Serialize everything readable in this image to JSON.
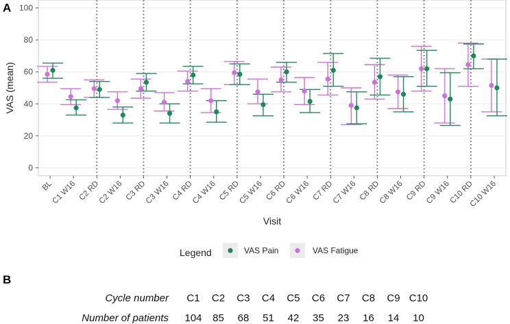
{
  "panel_a_label": "A",
  "panel_b_label": "B",
  "chart_data": {
    "type": "scatter",
    "subtype": "point-with-error-bars",
    "xlabel": "Visit",
    "ylabel": "VAS (mean)",
    "ylim": [
      -5,
      105
    ],
    "yticks": [
      0,
      20,
      40,
      60,
      80,
      100
    ],
    "categories": [
      "BL",
      "C1 W16",
      "C2 RD",
      "C2 W16",
      "C3 RD",
      "C3 W16",
      "C4 RD",
      "C4 W16",
      "C5 RD",
      "C5 W16",
      "C6 RD",
      "C6 W16",
      "C7 RD",
      "C7 W16",
      "C8 RD",
      "C8 W16",
      "C9 RD",
      "C9 W16",
      "C10 RD",
      "C10 W16"
    ],
    "vertical_dotted_lines_at": [
      "C2 RD",
      "C3 RD",
      "C4 RD",
      "C5 RD",
      "C6 RD",
      "C7 RD",
      "C8 RD",
      "C9 RD",
      "C10 RD"
    ],
    "legend_title": "Legend",
    "legend_position": "bottom",
    "series": [
      {
        "name": "VAS Pain",
        "color": "#1b8a5a",
        "values": [
          61,
          37.5,
          49,
          33,
          53.5,
          34,
          58,
          35,
          58.5,
          39.5,
          60,
          41.5,
          61,
          37.5,
          57,
          46,
          62,
          43,
          70,
          50
        ],
        "lower": [
          56,
          33,
          44,
          28,
          48,
          28,
          52.5,
          28.5,
          52,
          32.5,
          53.5,
          34.5,
          51,
          27.5,
          45.5,
          35,
          51,
          26.5,
          62,
          32.5
        ],
        "upper": [
          65.5,
          42.5,
          54,
          38,
          59,
          40,
          63.5,
          42,
          65,
          46,
          66,
          49,
          71.5,
          47.5,
          68.5,
          57,
          73.5,
          59.5,
          77.5,
          68
        ]
      },
      {
        "name": "VAS Fatigue",
        "color": "#d16fe0",
        "values": [
          58.5,
          44.5,
          49.5,
          42,
          49.5,
          41,
          54,
          42,
          59.5,
          47.5,
          55,
          48,
          55.5,
          39,
          53.5,
          47.5,
          62,
          45,
          64.5,
          51.5
        ],
        "lower": [
          53.5,
          39.5,
          44,
          36.5,
          43.5,
          35.5,
          48,
          34.5,
          52,
          40,
          47.5,
          39.5,
          45.5,
          27,
          43,
          37,
          48,
          28,
          51,
          35
        ],
        "upper": [
          63.5,
          49.5,
          55,
          47.5,
          55.5,
          47,
          60.5,
          49.5,
          66.5,
          55.5,
          63,
          56.5,
          66,
          50,
          64.5,
          58,
          76,
          62,
          78,
          68
        ]
      }
    ]
  },
  "table": {
    "row1_label": "Cycle number",
    "row2_label": "Number of patients",
    "cycles": [
      "C1",
      "C2",
      "C3",
      "C4",
      "C5",
      "C6",
      "C7",
      "C8",
      "C9",
      "C10"
    ],
    "patients": [
      "104",
      "85",
      "68",
      "51",
      "42",
      "35",
      "23",
      "16",
      "14",
      "10"
    ]
  }
}
